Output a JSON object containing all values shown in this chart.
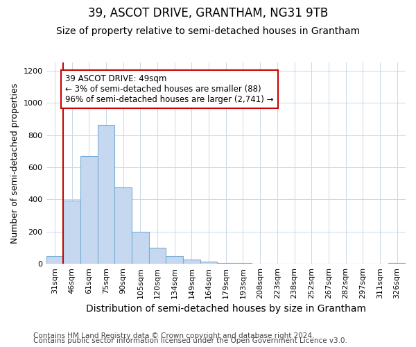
{
  "title1": "39, ASCOT DRIVE, GRANTHAM, NG31 9TB",
  "title2": "Size of property relative to semi-detached houses in Grantham",
  "xlabel": "Distribution of semi-detached houses by size in Grantham",
  "ylabel": "Number of semi-detached properties",
  "categories": [
    "31sqm",
    "46sqm",
    "61sqm",
    "75sqm",
    "90sqm",
    "105sqm",
    "120sqm",
    "134sqm",
    "149sqm",
    "164sqm",
    "179sqm",
    "193sqm",
    "208sqm",
    "223sqm",
    "238sqm",
    "252sqm",
    "267sqm",
    "282sqm",
    "297sqm",
    "311sqm",
    "326sqm"
  ],
  "values": [
    50,
    395,
    670,
    865,
    475,
    200,
    100,
    50,
    25,
    15,
    5,
    3,
    2,
    2,
    2,
    1,
    1,
    1,
    1,
    1,
    5
  ],
  "bar_color": "#c5d8f0",
  "bar_edge_color": "#7aaed6",
  "vline_color": "#cc0000",
  "annotation_text": "39 ASCOT DRIVE: 49sqm\n← 3% of semi-detached houses are smaller (88)\n96% of semi-detached houses are larger (2,741) →",
  "annotation_box_facecolor": "#ffffff",
  "annotation_box_edgecolor": "#cc0000",
  "ylim": [
    0,
    1250
  ],
  "yticks": [
    0,
    200,
    400,
    600,
    800,
    1000,
    1200
  ],
  "footer1": "Contains HM Land Registry data © Crown copyright and database right 2024.",
  "footer2": "Contains public sector information licensed under the Open Government Licence v3.0.",
  "bg_color": "#ffffff",
  "plot_bg_color": "#ffffff",
  "grid_color": "#c8d8e8",
  "title1_fontsize": 12,
  "title2_fontsize": 10,
  "xlabel_fontsize": 10,
  "ylabel_fontsize": 9,
  "annotation_fontsize": 8.5,
  "footer_fontsize": 7.5
}
